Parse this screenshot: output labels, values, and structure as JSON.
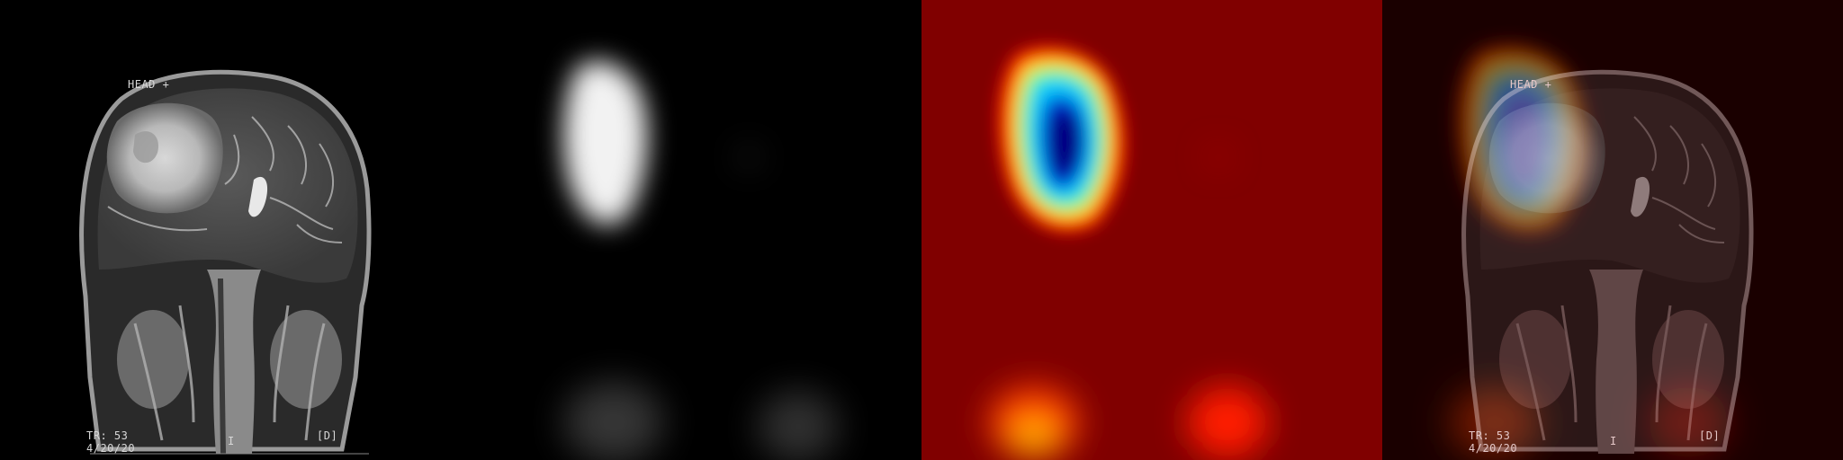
{
  "figure": {
    "panels": [
      {
        "kind": "mri",
        "labels": {
          "orientation": "HEAD +",
          "tr": "TR: 53",
          "date": "4/20/20",
          "inferior": "I",
          "side": "[D]"
        }
      },
      {
        "kind": "saliency_grayscale"
      },
      {
        "kind": "saliency_jet"
      },
      {
        "kind": "overlay",
        "labels": {
          "orientation": "HEAD +",
          "tr": "TR: 53",
          "date": "4/20/20",
          "inferior": "I",
          "side": "[D]"
        }
      }
    ],
    "colors": {
      "background": "#000000",
      "jet_low": "#800000",
      "jet_high": "#00007f"
    }
  }
}
